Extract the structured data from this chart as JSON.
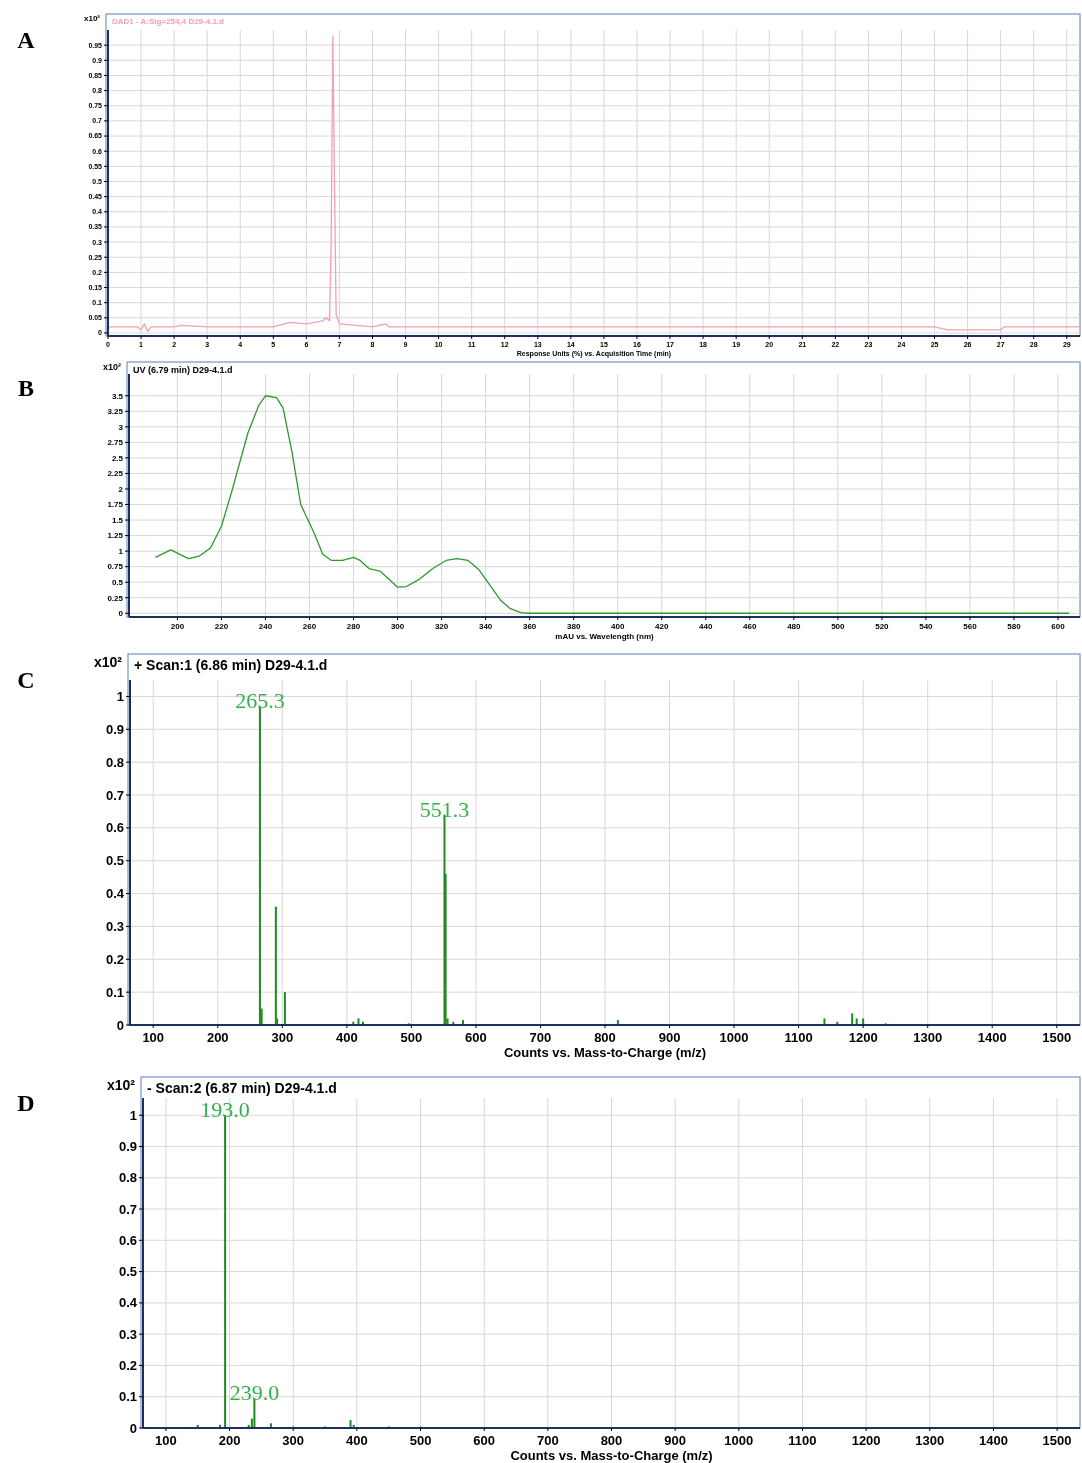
{
  "chart_data": [
    {
      "type": "line",
      "title": "DAD1 - A:Sig=254,4 D29-4.1.d",
      "xlabel": "Response Units (%) vs. Acquisition Time (min)",
      "ylabel": "x10²",
      "annotations": [
        "A"
      ],
      "grid": true,
      "x": [
        0,
        0.9,
        1.0,
        1.1,
        1.2,
        1.3,
        2,
        2.2,
        3,
        5,
        5.5,
        6,
        6.5,
        6.6,
        6.7,
        6.75,
        6.8,
        6.85,
        6.9,
        7,
        7.5,
        8,
        8.4,
        8.5,
        25,
        25.4,
        27,
        27.1,
        29.4
      ],
      "series": [
        {
          "color": "#f4a0ae",
          "values": [
            0.02,
            0.02,
            0.01,
            0.03,
            0.005,
            0.02,
            0.02,
            0.025,
            0.02,
            0.02,
            0.035,
            0.03,
            0.04,
            0.05,
            0.04,
            0.3,
            0.98,
            0.5,
            0.06,
            0.03,
            0.025,
            0.02,
            0.03,
            0.02,
            0.02,
            0.01,
            0.01,
            0.02,
            0.02
          ]
        }
      ],
      "xlim": [
        0,
        29.4
      ],
      "ylim": [
        -0.01,
        1.0
      ],
      "xticks": [
        0,
        1,
        2,
        3,
        4,
        5,
        6,
        7,
        8,
        9,
        10,
        11,
        12,
        13,
        14,
        15,
        16,
        17,
        18,
        19,
        20,
        21,
        22,
        23,
        24,
        25,
        26,
        27,
        28,
        29
      ],
      "yticks": [
        0,
        0.05,
        0.1,
        0.15,
        0.2,
        0.25,
        0.3,
        0.35,
        0.4,
        0.45,
        0.5,
        0.55,
        0.6,
        0.65,
        0.7,
        0.75,
        0.8,
        0.85,
        0.9,
        0.95
      ]
    },
    {
      "type": "line",
      "title": "UV (6.79 min) D29-4.1.d",
      "xlabel": "mAU vs. Wavelength (nm)",
      "ylabel": "x10²",
      "annotations": [
        "B"
      ],
      "grid": true,
      "x": [
        190,
        197,
        205,
        210,
        215,
        220,
        225,
        232,
        237,
        240,
        245,
        248,
        252,
        256,
        262,
        266,
        270,
        275,
        280,
        283,
        287,
        292,
        296,
        300,
        304,
        310,
        316,
        322,
        327,
        332,
        337,
        342,
        347,
        351,
        356,
        360,
        605
      ],
      "series": [
        {
          "color": "#2e9a2e",
          "values": [
            0.9,
            1.02,
            0.88,
            0.92,
            1.05,
            1.4,
            2.0,
            2.9,
            3.35,
            3.5,
            3.47,
            3.3,
            2.6,
            1.75,
            1.3,
            0.95,
            0.85,
            0.85,
            0.9,
            0.85,
            0.72,
            0.68,
            0.55,
            0.42,
            0.43,
            0.55,
            0.72,
            0.85,
            0.88,
            0.85,
            0.7,
            0.45,
            0.2,
            0.08,
            0.01,
            0,
            0
          ]
        }
      ],
      "xlim": [
        178,
        610
      ],
      "ylim": [
        -0.06,
        3.85
      ],
      "xticks": [
        200,
        220,
        240,
        260,
        280,
        300,
        320,
        340,
        360,
        380,
        400,
        420,
        440,
        460,
        480,
        500,
        520,
        540,
        560,
        580,
        600
      ],
      "yticks": [
        0,
        0.25,
        0.5,
        0.75,
        1,
        1.25,
        1.5,
        1.75,
        2,
        2.25,
        2.5,
        2.75,
        3,
        3.25,
        3.5
      ]
    },
    {
      "type": "bar",
      "title": "+ Scan:1 (6.86 min) D29-4.1.d",
      "xlabel": "Counts vs. Mass-to-Charge (m/z)",
      "ylabel": "x10²",
      "grid": true,
      "annotations": [
        "C",
        {
          "text": "265.3",
          "x": 265.3,
          "y": 0.97
        },
        {
          "text": "551.3",
          "x": 551.3,
          "y": 0.64
        }
      ],
      "x": [
        265.3,
        268,
        290,
        292,
        304,
        410,
        418,
        425,
        496,
        551.3,
        553,
        556,
        565,
        580,
        820,
        1140,
        1160,
        1183,
        1190,
        1200,
        1235
      ],
      "series": [
        {
          "color": "#1f8a1f",
          "values": [
            0.97,
            0.05,
            0.36,
            0.02,
            0.1,
            0.01,
            0.02,
            0.01,
            0.005,
            0.64,
            0.46,
            0.02,
            0.01,
            0.015,
            0.015,
            0.02,
            0.01,
            0.035,
            0.02,
            0.02,
            0.005
          ]
        }
      ],
      "xlim": [
        64,
        1536
      ],
      "ylim": [
        0,
        1.05
      ],
      "xticks": [
        100,
        200,
        300,
        400,
        500,
        600,
        700,
        800,
        900,
        1000,
        1100,
        1200,
        1300,
        1400,
        1500
      ],
      "yticks": [
        0,
        0.1,
        0.2,
        0.3,
        0.4,
        0.5,
        0.6,
        0.7,
        0.8,
        0.9,
        1
      ]
    },
    {
      "type": "bar",
      "title": "- Scan:2 (6.87 min) D29-4.1.d",
      "xlabel": "Counts vs. Mass-to-Charge (m/z)",
      "ylabel": "x10²",
      "grid": true,
      "annotations": [
        "D",
        {
          "text": "193.0",
          "x": 193.0,
          "y": 1.0
        },
        {
          "text": "239.0",
          "x": 239.0,
          "y": 0.095
        }
      ],
      "x": [
        150,
        185,
        193.0,
        230,
        235,
        239.0,
        265,
        300,
        350,
        390,
        395,
        450,
        500
      ],
      "series": [
        {
          "color": "#1f8a1f",
          "values": [
            0.01,
            0.01,
            1.0,
            0.01,
            0.03,
            0.095,
            0.015,
            0.005,
            0.005,
            0.025,
            0.01,
            0.005,
            0.005
          ]
        }
      ],
      "xlim": [
        64,
        1536
      ],
      "ylim": [
        0,
        1.055
      ],
      "xticks": [
        100,
        200,
        300,
        400,
        500,
        600,
        700,
        800,
        900,
        1000,
        1100,
        1200,
        1300,
        1400,
        1500
      ],
      "yticks": [
        0,
        0.1,
        0.2,
        0.3,
        0.4,
        0.5,
        0.6,
        0.7,
        0.8,
        0.9,
        1
      ]
    }
  ]
}
